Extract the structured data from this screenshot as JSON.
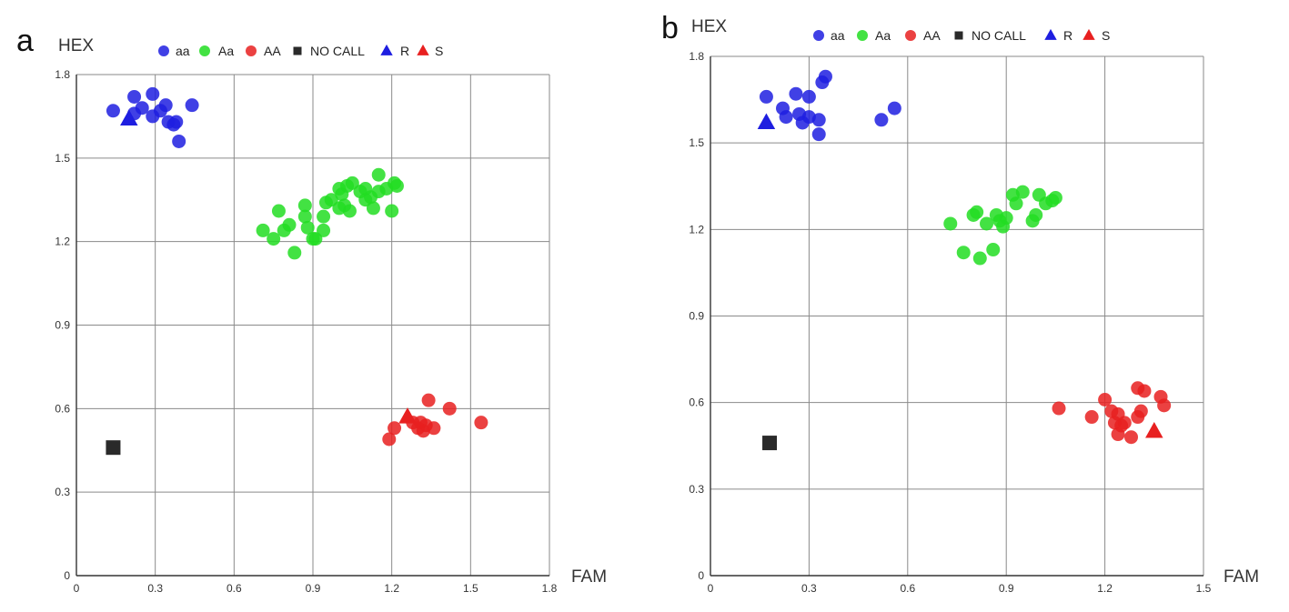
{
  "chart_data": [
    {
      "type": "scatter",
      "panel": "a",
      "xlabel": "FAM",
      "ylabel": "HEX",
      "xlim": [
        0,
        1.8
      ],
      "ylim": [
        0,
        1.8
      ],
      "xticks": [
        "0",
        "0.3",
        "0.6",
        "0.9",
        "1.2",
        "1.5",
        "1.8"
      ],
      "yticks": [
        "0",
        "0.3",
        "0.6",
        "0.9",
        "1.2",
        "1.5",
        "1.8"
      ],
      "grid": true,
      "legend_position": "top",
      "series": [
        {
          "name": "aa",
          "marker": "circle",
          "color": "#1e1ee0",
          "points": [
            [
              0.14,
              1.67
            ],
            [
              0.22,
              1.72
            ],
            [
              0.22,
              1.66
            ],
            [
              0.25,
              1.68
            ],
            [
              0.29,
              1.73
            ],
            [
              0.29,
              1.65
            ],
            [
              0.32,
              1.67
            ],
            [
              0.34,
              1.69
            ],
            [
              0.35,
              1.63
            ],
            [
              0.37,
              1.62
            ],
            [
              0.38,
              1.63
            ],
            [
              0.39,
              1.56
            ],
            [
              0.44,
              1.69
            ]
          ]
        },
        {
          "name": "Aa",
          "marker": "circle",
          "color": "#22dd22",
          "points": [
            [
              0.71,
              1.24
            ],
            [
              0.75,
              1.21
            ],
            [
              0.77,
              1.31
            ],
            [
              0.79,
              1.24
            ],
            [
              0.81,
              1.26
            ],
            [
              0.83,
              1.16
            ],
            [
              0.87,
              1.33
            ],
            [
              0.87,
              1.29
            ],
            [
              0.88,
              1.25
            ],
            [
              0.9,
              1.21
            ],
            [
              0.91,
              1.21
            ],
            [
              0.94,
              1.29
            ],
            [
              0.94,
              1.24
            ],
            [
              0.95,
              1.34
            ],
            [
              0.97,
              1.35
            ],
            [
              1.0,
              1.39
            ],
            [
              1.0,
              1.32
            ],
            [
              1.01,
              1.37
            ],
            [
              1.02,
              1.33
            ],
            [
              1.03,
              1.4
            ],
            [
              1.04,
              1.31
            ],
            [
              1.05,
              1.41
            ],
            [
              1.08,
              1.38
            ],
            [
              1.1,
              1.39
            ],
            [
              1.1,
              1.35
            ],
            [
              1.12,
              1.36
            ],
            [
              1.13,
              1.32
            ],
            [
              1.15,
              1.44
            ],
            [
              1.15,
              1.38
            ],
            [
              1.18,
              1.39
            ],
            [
              1.2,
              1.31
            ],
            [
              1.21,
              1.41
            ],
            [
              1.22,
              1.4
            ]
          ]
        },
        {
          "name": "AA",
          "marker": "circle",
          "color": "#e82020",
          "points": [
            [
              1.19,
              0.49
            ],
            [
              1.21,
              0.53
            ],
            [
              1.28,
              0.55
            ],
            [
              1.3,
              0.53
            ],
            [
              1.31,
              0.55
            ],
            [
              1.32,
              0.52
            ],
            [
              1.33,
              0.54
            ],
            [
              1.34,
              0.63
            ],
            [
              1.36,
              0.53
            ],
            [
              1.42,
              0.6
            ],
            [
              1.54,
              0.55
            ]
          ]
        },
        {
          "name": "NO CALL",
          "marker": "square",
          "color": "#2a2a2a",
          "points": [
            [
              0.14,
              0.46
            ]
          ]
        },
        {
          "name": "R",
          "marker": "triangle",
          "color": "#1e1ee0",
          "points": [
            [
              0.2,
              1.64
            ]
          ]
        },
        {
          "name": "S",
          "marker": "triangle",
          "color": "#e82020",
          "points": [
            [
              1.26,
              0.57
            ]
          ]
        }
      ]
    },
    {
      "type": "scatter",
      "panel": "b",
      "xlabel": "FAM",
      "ylabel": "HEX",
      "xlim": [
        0,
        1.5
      ],
      "ylim": [
        0,
        1.8
      ],
      "xticks": [
        "0",
        "0.3",
        "0.6",
        "0.9",
        "1.2",
        "1.5"
      ],
      "yticks": [
        "0",
        "0.3",
        "0.6",
        "0.9",
        "1.2",
        "1.5",
        "1.8"
      ],
      "grid": true,
      "legend_position": "top",
      "series": [
        {
          "name": "aa",
          "marker": "circle",
          "color": "#1e1ee0",
          "points": [
            [
              0.17,
              1.66
            ],
            [
              0.22,
              1.62
            ],
            [
              0.23,
              1.59
            ],
            [
              0.26,
              1.67
            ],
            [
              0.27,
              1.6
            ],
            [
              0.28,
              1.57
            ],
            [
              0.3,
              1.59
            ],
            [
              0.3,
              1.66
            ],
            [
              0.33,
              1.58
            ],
            [
              0.33,
              1.53
            ],
            [
              0.34,
              1.71
            ],
            [
              0.35,
              1.73
            ],
            [
              0.52,
              1.58
            ],
            [
              0.56,
              1.62
            ]
          ]
        },
        {
          "name": "Aa",
          "marker": "circle",
          "color": "#22dd22",
          "points": [
            [
              0.73,
              1.22
            ],
            [
              0.77,
              1.12
            ],
            [
              0.8,
              1.25
            ],
            [
              0.81,
              1.26
            ],
            [
              0.82,
              1.1
            ],
            [
              0.84,
              1.22
            ],
            [
              0.86,
              1.13
            ],
            [
              0.87,
              1.25
            ],
            [
              0.88,
              1.23
            ],
            [
              0.89,
              1.21
            ],
            [
              0.9,
              1.24
            ],
            [
              0.92,
              1.32
            ],
            [
              0.93,
              1.29
            ],
            [
              0.95,
              1.33
            ],
            [
              0.98,
              1.23
            ],
            [
              0.99,
              1.25
            ],
            [
              1.0,
              1.32
            ],
            [
              1.02,
              1.29
            ],
            [
              1.04,
              1.3
            ],
            [
              1.05,
              1.31
            ]
          ]
        },
        {
          "name": "AA",
          "marker": "circle",
          "color": "#e82020",
          "points": [
            [
              1.06,
              0.58
            ],
            [
              1.16,
              0.55
            ],
            [
              1.2,
              0.61
            ],
            [
              1.22,
              0.57
            ],
            [
              1.23,
              0.53
            ],
            [
              1.24,
              0.49
            ],
            [
              1.24,
              0.56
            ],
            [
              1.25,
              0.52
            ],
            [
              1.26,
              0.53
            ],
            [
              1.28,
              0.48
            ],
            [
              1.3,
              0.55
            ],
            [
              1.3,
              0.65
            ],
            [
              1.31,
              0.57
            ],
            [
              1.32,
              0.64
            ],
            [
              1.37,
              0.62
            ],
            [
              1.38,
              0.59
            ]
          ]
        },
        {
          "name": "NO CALL",
          "marker": "square",
          "color": "#2a2a2a",
          "points": [
            [
              0.18,
              0.46
            ]
          ]
        },
        {
          "name": "R",
          "marker": "triangle",
          "color": "#1e1ee0",
          "points": [
            [
              0.17,
              1.57
            ]
          ]
        },
        {
          "name": "S",
          "marker": "triangle",
          "color": "#e82020",
          "points": [
            [
              1.35,
              0.5
            ]
          ]
        }
      ]
    }
  ]
}
